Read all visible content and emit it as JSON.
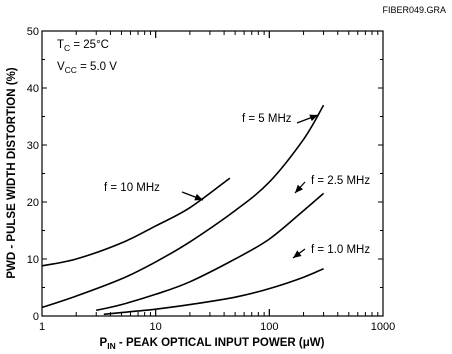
{
  "chart_data": {
    "type": "line",
    "figure_id": "FIBER049.GRA",
    "xlabel": {
      "main": "P",
      "sub": "IN",
      "rest": " - PEAK OPTICAL INPUT POWER (μW)"
    },
    "ylabel": "PWD - PULSE WIDTH DISTORTION (%)",
    "xscale": "log",
    "xlim": [
      1,
      1000
    ],
    "ylim": [
      0,
      50
    ],
    "x_ticks": [
      1,
      10,
      100,
      1000
    ],
    "x_tick_labels": [
      "1",
      "10",
      "100",
      "1000"
    ],
    "y_ticks": [
      0,
      10,
      20,
      30,
      40,
      50
    ],
    "y_tick_labels": [
      "0",
      "10",
      "20",
      "30",
      "40",
      "50"
    ],
    "grid": false,
    "conditions": [
      {
        "main": "T",
        "sub": "C",
        "rest": " = 25°C"
      },
      {
        "main": "V",
        "sub": "CC",
        "rest": " = 5.0 V"
      }
    ],
    "series": [
      {
        "name": "f = 10 MHz",
        "x": [
          1,
          2,
          5,
          10,
          20,
          45
        ],
        "y": [
          8.8,
          10.0,
          12.8,
          15.8,
          19.0,
          24.2
        ]
      },
      {
        "name": "f = 5 MHz",
        "x": [
          1,
          2,
          5,
          10,
          20,
          50,
          100,
          200,
          300
        ],
        "y": [
          1.5,
          3.5,
          6.5,
          9.5,
          13.0,
          18.5,
          23.5,
          31.0,
          37.0
        ]
      },
      {
        "name": "f = 2.5 MHz",
        "x": [
          3,
          5,
          10,
          20,
          50,
          100,
          200,
          300
        ],
        "y": [
          1.0,
          2.0,
          3.8,
          6.0,
          10.0,
          13.5,
          18.5,
          21.5
        ]
      },
      {
        "name": "f = 1.0 MHz",
        "x": [
          3.5,
          5,
          10,
          20,
          50,
          100,
          200,
          300
        ],
        "y": [
          0.3,
          0.6,
          1.2,
          2.0,
          3.3,
          4.8,
          6.8,
          8.3
        ]
      }
    ],
    "annotations": [
      {
        "text": "f = 10 MHz",
        "series": 0
      },
      {
        "text": "f = 5 MHz",
        "series": 1
      },
      {
        "text": "f = 2.5 MHz",
        "series": 2
      },
      {
        "text": "f = 1.0 MHz",
        "series": 3
      }
    ]
  }
}
